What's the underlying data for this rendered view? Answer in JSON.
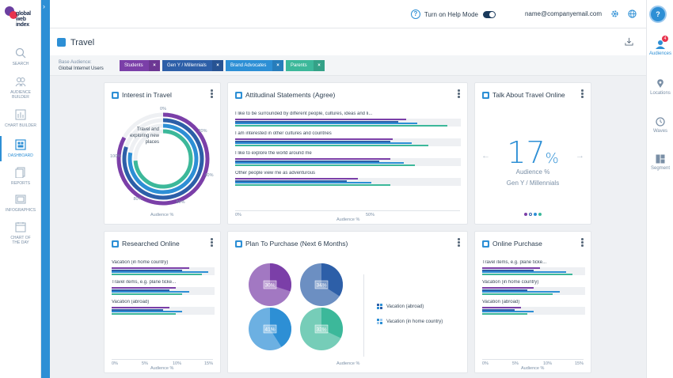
{
  "brand": {
    "logo_text_1": "global",
    "logo_text_2": "web",
    "logo_text_3": "index"
  },
  "nav": [
    {
      "label": "SEARCH",
      "icon": "search-icon"
    },
    {
      "label": "AUDIENCE BUILDER",
      "icon": "audience-icon"
    },
    {
      "label": "CHART BUILDER",
      "icon": "chart-icon"
    },
    {
      "label": "DASHBOARD",
      "icon": "dashboard-icon"
    },
    {
      "label": "REPORTS",
      "icon": "report-icon"
    },
    {
      "label": "INFOGRAPHICS",
      "icon": "infographics-icon"
    },
    {
      "label": "CHART OF THE DAY",
      "icon": "calendar-icon"
    }
  ],
  "right_nav": [
    {
      "label": "Audiences",
      "badge": "4"
    },
    {
      "label": "Locations"
    },
    {
      "label": "Waves"
    },
    {
      "label": "Segment"
    }
  ],
  "topbar": {
    "help_label": "Turn on Help Mode",
    "email": "name@companyemail.com",
    "help_button": "?"
  },
  "page": {
    "title": "Travel"
  },
  "audience": {
    "base_label": "Base Audience:",
    "base_value": "Global Internet Users",
    "chips": [
      {
        "label": "Students",
        "color": "#7b3fa8"
      },
      {
        "label": "Gen Y / Millennials",
        "color": "#2d5fa8"
      },
      {
        "label": "Brand Advocates",
        "color": "#2d8fd5"
      },
      {
        "label": "Parents",
        "color": "#3cb89a"
      }
    ]
  },
  "series_colors": [
    "#7b3fa8",
    "#2d5fa8",
    "#2d8fd5",
    "#3cb89a"
  ],
  "cards": {
    "interest": {
      "title": "Interest in Travel",
      "label": "Travel and exploring new places",
      "ticks": [
        "0%",
        "20%",
        "40%",
        "60%",
        "80%",
        "100%"
      ],
      "axis_label": "Audience %"
    },
    "attitudinal": {
      "title": "Attitudinal Statements (Agree)",
      "axis_ticks": [
        "0%",
        "50%"
      ],
      "axis_label": "Audience %"
    },
    "talk": {
      "title": "Talk About Travel Online",
      "value": "17",
      "unit": "%",
      "caption": "Audience %",
      "audience": "Gen Y / Millennials"
    },
    "researched": {
      "title": "Researched Online",
      "axis_ticks": [
        "0%",
        "5%",
        "10%",
        "15%"
      ],
      "axis_label": "Audience %"
    },
    "plan": {
      "title": "Plan To Purchase (Next 6 Months)",
      "pies": [
        "30%",
        "34%",
        "41%",
        "32%"
      ],
      "legend": [
        "Vacation (abroad)",
        "Vacation (in home country)"
      ],
      "axis_label": "Audience %"
    },
    "online": {
      "title": "Online Purchase",
      "axis_ticks": [
        "0%",
        "5%",
        "10%",
        "15%"
      ],
      "axis_label": "Audience %"
    }
  },
  "chart_data": [
    {
      "type": "bar",
      "title": "Attitudinal Statements (Agree)",
      "categories": [
        "I like to be surrounded by different people, cultures, ideas and li...",
        "I am interested in other cultures and countries",
        "I like to explore the world around me",
        "Other people view me as adventurous"
      ],
      "series": [
        {
          "name": "Students",
          "values": [
            63,
            58,
            57,
            45
          ]
        },
        {
          "name": "Gen Y / Millennials",
          "values": [
            60,
            57,
            53,
            41
          ]
        },
        {
          "name": "Brand Advocates",
          "values": [
            67,
            65,
            62,
            50
          ]
        },
        {
          "name": "Parents",
          "values": [
            78,
            71,
            66,
            57
          ]
        }
      ],
      "xlim": [
        0,
        83
      ],
      "xlabel": "Audience %"
    },
    {
      "type": "bar",
      "title": "Researched Online",
      "categories": [
        "Vacation (in home country)",
        "Travel items, e.g. plane ticke...",
        "Vacation (abroad)"
      ],
      "series": [
        {
          "name": "Students",
          "values": [
            12,
            10,
            9
          ]
        },
        {
          "name": "Gen Y / Millennials",
          "values": [
            11,
            9,
            8
          ]
        },
        {
          "name": "Brand Advocates",
          "values": [
            15,
            12,
            11
          ]
        },
        {
          "name": "Parents",
          "values": [
            14,
            11,
            10
          ]
        }
      ],
      "xlim": [
        0,
        16
      ],
      "xlabel": "Audience %"
    },
    {
      "type": "bar",
      "title": "Online Purchase",
      "categories": [
        "Travel items, e.g. plane ticke...",
        "Vacation (in home country)",
        "Vacation (abroad)"
      ],
      "series": [
        {
          "name": "Students",
          "values": [
            9,
            8,
            6
          ]
        },
        {
          "name": "Gen Y / Millennials",
          "values": [
            8,
            7,
            5
          ]
        },
        {
          "name": "Brand Advocates",
          "values": [
            13,
            12,
            8
          ]
        },
        {
          "name": "Parents",
          "values": [
            14,
            11,
            7
          ]
        }
      ],
      "xlim": [
        0,
        16
      ],
      "xlabel": "Audience %"
    },
    {
      "type": "pie",
      "title": "Plan To Purchase (Next 6 Months)",
      "categories": [
        "Students",
        "Gen Y / Millennials",
        "Brand Advocates",
        "Parents"
      ],
      "values": [
        30,
        34,
        41,
        32
      ]
    },
    {
      "type": "bar",
      "title": "Interest in Travel",
      "categories": [
        "Travel and exploring new places"
      ],
      "series": [
        {
          "name": "Students",
          "values": [
            83
          ]
        },
        {
          "name": "Gen Y / Millennials",
          "values": [
            80
          ]
        },
        {
          "name": "Brand Advocates",
          "values": [
            78
          ]
        },
        {
          "name": "Parents",
          "values": [
            74
          ]
        }
      ],
      "ylim": [
        0,
        100
      ]
    }
  ]
}
